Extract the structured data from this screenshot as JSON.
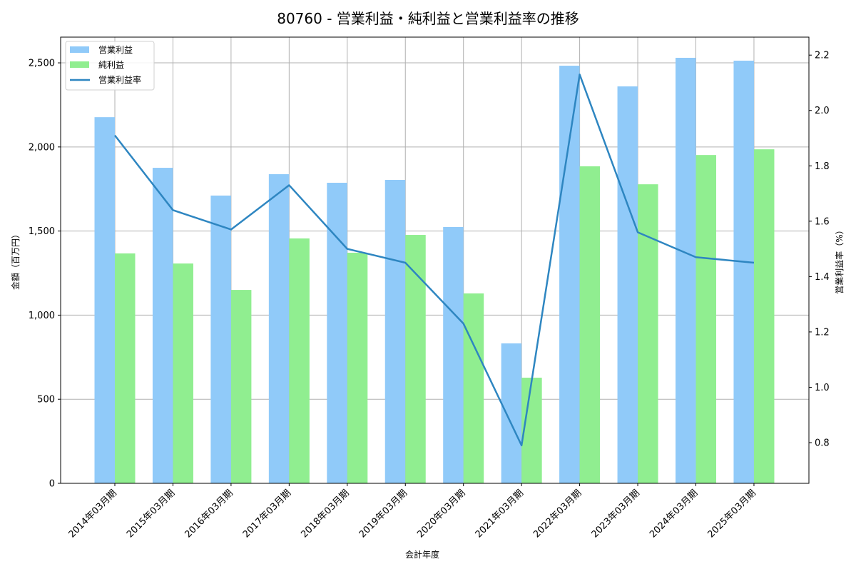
{
  "chart_data": {
    "type": "bar+line",
    "title": "80760 - 営業利益・純利益と営業利益率の推移",
    "xlabel": "会計年度",
    "ylabel": "金額（百万円）",
    "ylabel_right": "営業利益率（%）",
    "categories": [
      "2014年03月期",
      "2015年03月期",
      "2016年03月期",
      "2017年03月期",
      "2018年03月期",
      "2019年03月期",
      "2020年03月期",
      "2021年03月期",
      "2022年03月期",
      "2023年03月期",
      "2024年03月期",
      "2025年03月期"
    ],
    "series": [
      {
        "name": "営業利益",
        "type": "bar",
        "axis": "left",
        "color": "#90CAF9",
        "values": [
          2177,
          1876,
          1711,
          1838,
          1787,
          1804,
          1524,
          832,
          2483,
          2360,
          2530,
          2513
        ]
      },
      {
        "name": "純利益",
        "type": "bar",
        "axis": "left",
        "color": "#90EE90",
        "values": [
          1367,
          1307,
          1150,
          1456,
          1371,
          1477,
          1129,
          628,
          1885,
          1778,
          1952,
          1986
        ]
      },
      {
        "name": "営業利益率",
        "type": "line",
        "axis": "right",
        "color": "#2E86C1",
        "values": [
          1.91,
          1.64,
          1.57,
          1.73,
          1.5,
          1.45,
          1.23,
          0.79,
          2.13,
          1.56,
          1.47,
          1.45
        ]
      }
    ],
    "ylim": [
      0,
      2653
    ],
    "ylim_right": [
      0.653,
      2.265
    ],
    "yticks": [
      0,
      500,
      1000,
      1500,
      2000,
      2500
    ],
    "ytick_labels": [
      "0",
      "500",
      "1,000",
      "1,500",
      "2,000",
      "2,500"
    ],
    "yticks_right": [
      0.8,
      1.0,
      1.2,
      1.4,
      1.6,
      1.8,
      2.0,
      2.2
    ],
    "ytick_labels_right": [
      "0.8",
      "1.0",
      "1.2",
      "1.4",
      "1.6",
      "1.8",
      "2.0",
      "2.2"
    ],
    "grid": true,
    "legend_position": "upper left"
  }
}
